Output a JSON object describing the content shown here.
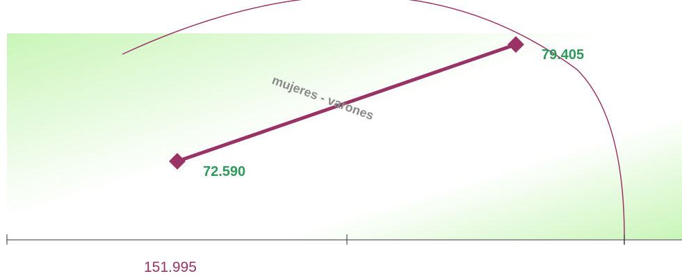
{
  "chart_data": {
    "type": "line",
    "points": [
      {
        "name": "mujeres",
        "value": 72.59,
        "label": "72.590"
      },
      {
        "name": "varones",
        "value": 79.405,
        "label": "79.405"
      }
    ],
    "connector_label": "mujeres - varones",
    "total": 151.995,
    "total_label": "151.995",
    "colors": {
      "series": "#993366",
      "value_text": "#2e9a5a",
      "connector_text": "#8a8a8a",
      "total_text": "#993366",
      "band_green": "#c9f5b8",
      "axis": "#333333"
    }
  }
}
